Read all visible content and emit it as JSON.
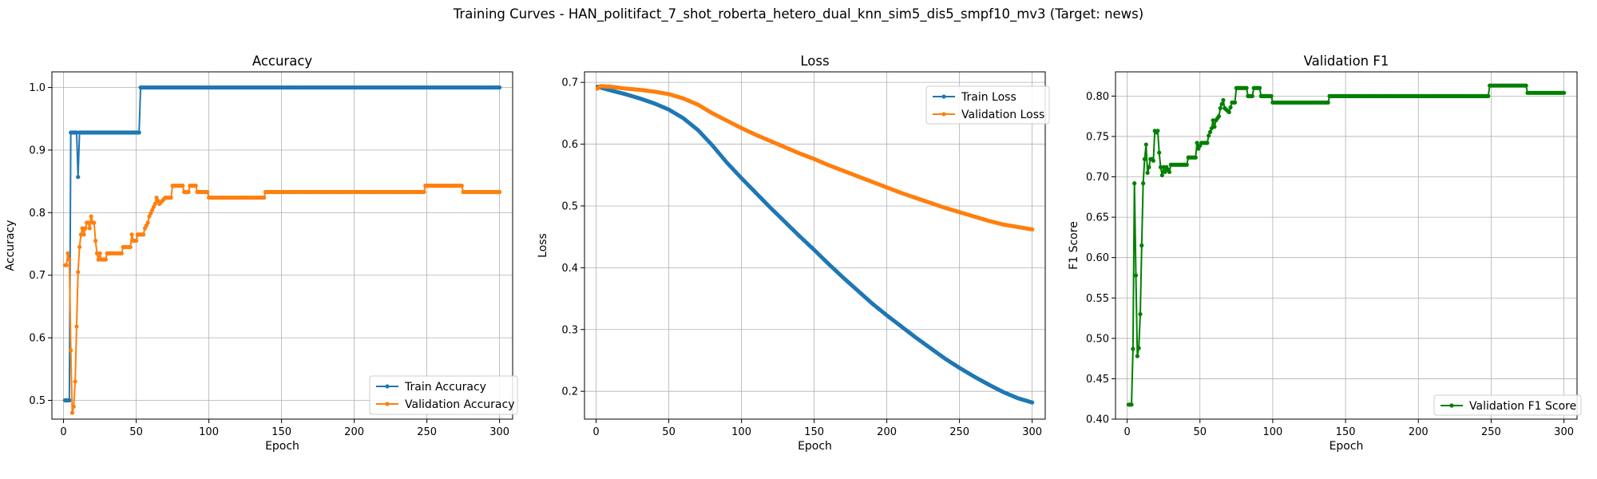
{
  "figure": {
    "title": "Training Curves - HAN_politifact_7_shot_roberta_hetero_dual_knn_sim5_dis5_smpf10_mv3 (Target: news)"
  },
  "chart_data": [
    {
      "type": "line",
      "title": "Accuracy",
      "xlabel": "Epoch",
      "ylabel": "Accuracy",
      "xlim": [
        -8,
        309
      ],
      "ylim": [
        0.47,
        1.025
      ],
      "xticks": [
        0,
        50,
        100,
        150,
        200,
        250,
        300
      ],
      "yticks": [
        0.5,
        0.6,
        0.7,
        0.8,
        0.9,
        1.0
      ],
      "grid": true,
      "legend_position": "lower right",
      "series": [
        {
          "name": "Train Accuracy",
          "color": "#1f77b4",
          "points": [
            [
              1,
              0.5
            ],
            [
              4,
              0.5
            ],
            [
              5,
              0.928
            ],
            [
              9,
              0.928
            ],
            [
              10,
              0.857
            ],
            [
              11,
              0.928
            ],
            [
              52,
              0.928
            ],
            [
              53,
              1.0
            ],
            [
              300,
              1.0
            ]
          ]
        },
        {
          "name": "Validation Accuracy",
          "color": "#ff7f0e",
          "points": [
            [
              1,
              0.716
            ],
            [
              2,
              0.716
            ],
            [
              3,
              0.735
            ],
            [
              4,
              0.725
            ],
            [
              5,
              0.58
            ],
            [
              6,
              0.48
            ],
            [
              7,
              0.49
            ],
            [
              8,
              0.53
            ],
            [
              9,
              0.618
            ],
            [
              10,
              0.705
            ],
            [
              11,
              0.745
            ],
            [
              12,
              0.765
            ],
            [
              13,
              0.775
            ],
            [
              14,
              0.765
            ],
            [
              15,
              0.775
            ],
            [
              16,
              0.784
            ],
            [
              17,
              0.784
            ],
            [
              18,
              0.775
            ],
            [
              19,
              0.794
            ],
            [
              20,
              0.784
            ],
            [
              21,
              0.784
            ],
            [
              22,
              0.755
            ],
            [
              23,
              0.735
            ],
            [
              24,
              0.725
            ],
            [
              25,
              0.735
            ],
            [
              26,
              0.725
            ],
            [
              29,
              0.725
            ],
            [
              30,
              0.735
            ],
            [
              40,
              0.735
            ],
            [
              41,
              0.745
            ],
            [
              46,
              0.745
            ],
            [
              47,
              0.765
            ],
            [
              48,
              0.755
            ],
            [
              50,
              0.755
            ],
            [
              51,
              0.765
            ],
            [
              55,
              0.765
            ],
            [
              56,
              0.775
            ],
            [
              58,
              0.784
            ],
            [
              59,
              0.794
            ],
            [
              61,
              0.804
            ],
            [
              63,
              0.814
            ],
            [
              64,
              0.824
            ],
            [
              66,
              0.814
            ],
            [
              70,
              0.824
            ],
            [
              74,
              0.824
            ],
            [
              75,
              0.843
            ],
            [
              82,
              0.843
            ],
            [
              83,
              0.833
            ],
            [
              86,
              0.833
            ],
            [
              87,
              0.843
            ],
            [
              91,
              0.843
            ],
            [
              92,
              0.833
            ],
            [
              99,
              0.833
            ],
            [
              100,
              0.824
            ],
            [
              138,
              0.824
            ],
            [
              139,
              0.833
            ],
            [
              248,
              0.833
            ],
            [
              249,
              0.843
            ],
            [
              274,
              0.843
            ],
            [
              275,
              0.833
            ],
            [
              300,
              0.833
            ]
          ]
        }
      ]
    },
    {
      "type": "line",
      "title": "Loss",
      "xlabel": "Epoch",
      "ylabel": "Loss",
      "xlim": [
        -8,
        309
      ],
      "ylim": [
        0.155,
        0.717
      ],
      "xticks": [
        0,
        50,
        100,
        150,
        200,
        250,
        300
      ],
      "yticks": [
        0.2,
        0.3,
        0.4,
        0.5,
        0.6,
        0.7
      ],
      "grid": true,
      "legend_position": "upper right",
      "series": [
        {
          "name": "Train Loss",
          "color": "#1f77b4",
          "points": [
            [
              1,
              0.693
            ],
            [
              10,
              0.687
            ],
            [
              20,
              0.681
            ],
            [
              30,
              0.674
            ],
            [
              40,
              0.666
            ],
            [
              50,
              0.656
            ],
            [
              60,
              0.642
            ],
            [
              70,
              0.623
            ],
            [
              80,
              0.598
            ],
            [
              90,
              0.57
            ],
            [
              100,
              0.545
            ],
            [
              110,
              0.521
            ],
            [
              120,
              0.497
            ],
            [
              130,
              0.474
            ],
            [
              140,
              0.451
            ],
            [
              150,
              0.429
            ],
            [
              160,
              0.406
            ],
            [
              170,
              0.384
            ],
            [
              180,
              0.363
            ],
            [
              190,
              0.342
            ],
            [
              200,
              0.323
            ],
            [
              210,
              0.305
            ],
            [
              220,
              0.287
            ],
            [
              230,
              0.27
            ],
            [
              240,
              0.253
            ],
            [
              250,
              0.238
            ],
            [
              260,
              0.224
            ],
            [
              270,
              0.211
            ],
            [
              280,
              0.199
            ],
            [
              290,
              0.189
            ],
            [
              300,
              0.182
            ]
          ]
        },
        {
          "name": "Validation Loss",
          "color": "#ff7f0e",
          "points": [
            [
              1,
              0.69
            ],
            [
              3,
              0.694
            ],
            [
              10,
              0.693
            ],
            [
              20,
              0.69
            ],
            [
              30,
              0.688
            ],
            [
              40,
              0.685
            ],
            [
              50,
              0.681
            ],
            [
              60,
              0.674
            ],
            [
              70,
              0.664
            ],
            [
              80,
              0.65
            ],
            [
              90,
              0.638
            ],
            [
              100,
              0.626
            ],
            [
              110,
              0.615
            ],
            [
              120,
              0.605
            ],
            [
              130,
              0.595
            ],
            [
              140,
              0.585
            ],
            [
              150,
              0.576
            ],
            [
              160,
              0.566
            ],
            [
              170,
              0.557
            ],
            [
              180,
              0.548
            ],
            [
              190,
              0.539
            ],
            [
              200,
              0.53
            ],
            [
              210,
              0.521
            ],
            [
              220,
              0.513
            ],
            [
              230,
              0.505
            ],
            [
              240,
              0.497
            ],
            [
              250,
              0.49
            ],
            [
              260,
              0.483
            ],
            [
              270,
              0.476
            ],
            [
              280,
              0.47
            ],
            [
              290,
              0.466
            ],
            [
              300,
              0.462
            ]
          ]
        }
      ]
    },
    {
      "type": "line",
      "title": "Validation F1",
      "xlabel": "Epoch",
      "ylabel": "F1 Score",
      "xlim": [
        -8,
        309
      ],
      "ylim": [
        0.4,
        0.83
      ],
      "xticks": [
        0,
        50,
        100,
        150,
        200,
        250,
        300
      ],
      "yticks": [
        0.4,
        0.45,
        0.5,
        0.55,
        0.6,
        0.65,
        0.7,
        0.75,
        0.8
      ],
      "grid": true,
      "legend_position": "lower right",
      "series": [
        {
          "name": "Validation F1 Score",
          "color": "#008000",
          "points": [
            [
              1,
              0.418
            ],
            [
              3,
              0.418
            ],
            [
              4,
              0.487
            ],
            [
              5,
              0.692
            ],
            [
              6,
              0.578
            ],
            [
              7,
              0.478
            ],
            [
              8,
              0.488
            ],
            [
              9,
              0.53
            ],
            [
              10,
              0.615
            ],
            [
              11,
              0.692
            ],
            [
              12,
              0.722
            ],
            [
              13,
              0.74
            ],
            [
              14,
              0.705
            ],
            [
              15,
              0.712
            ],
            [
              16,
              0.722
            ],
            [
              17,
              0.722
            ],
            [
              18,
              0.72
            ],
            [
              19,
              0.757
            ],
            [
              20,
              0.755
            ],
            [
              21,
              0.757
            ],
            [
              22,
              0.73
            ],
            [
              23,
              0.712
            ],
            [
              24,
              0.702
            ],
            [
              25,
              0.712
            ],
            [
              26,
              0.706
            ],
            [
              27,
              0.712
            ],
            [
              29,
              0.706
            ],
            [
              30,
              0.715
            ],
            [
              41,
              0.715
            ],
            [
              42,
              0.724
            ],
            [
              47,
              0.724
            ],
            [
              48,
              0.742
            ],
            [
              49,
              0.735
            ],
            [
              51,
              0.742
            ],
            [
              55,
              0.742
            ],
            [
              56,
              0.751
            ],
            [
              58,
              0.76
            ],
            [
              59,
              0.77
            ],
            [
              60,
              0.762
            ],
            [
              61,
              0.77
            ],
            [
              63,
              0.775
            ],
            [
              64,
              0.785
            ],
            [
              66,
              0.795
            ],
            [
              67,
              0.785
            ],
            [
              70,
              0.78
            ],
            [
              72,
              0.792
            ],
            [
              74,
              0.792
            ],
            [
              75,
              0.81
            ],
            [
              82,
              0.81
            ],
            [
              83,
              0.8
            ],
            [
              86,
              0.8
            ],
            [
              87,
              0.81
            ],
            [
              91,
              0.81
            ],
            [
              92,
              0.8
            ],
            [
              99,
              0.8
            ],
            [
              100,
              0.792
            ],
            [
              138,
              0.792
            ],
            [
              139,
              0.8
            ],
            [
              248,
              0.8
            ],
            [
              249,
              0.813
            ],
            [
              274,
              0.813
            ],
            [
              275,
              0.804
            ],
            [
              300,
              0.804
            ]
          ]
        }
      ]
    }
  ]
}
